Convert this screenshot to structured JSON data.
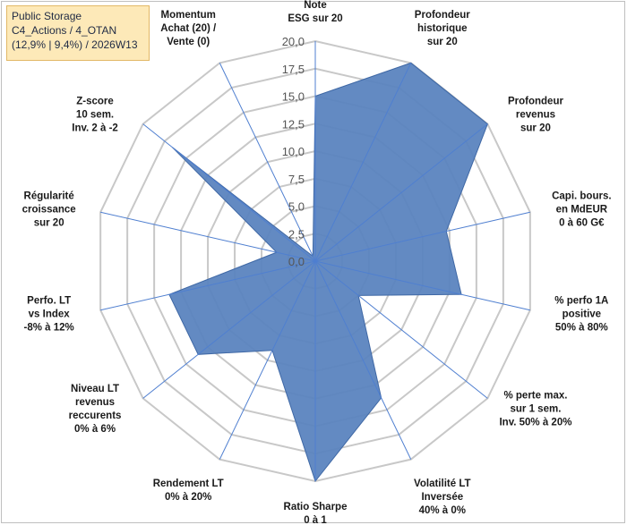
{
  "header": {
    "line1": "Public Storage",
    "line2": "C4_Actions / 4_OTAN",
    "line3": "(12,9% | 9,4%) / 2026W13"
  },
  "colors": {
    "fill": "#5b84bf",
    "stroke": "#3f68a5",
    "grid": "#c8c8c8",
    "axis": "#4f7fd0"
  },
  "chart_data": {
    "type": "radar",
    "rmin": 0,
    "rmax": 20,
    "ticks": [
      "0,0",
      "2,5",
      "5,0",
      "7,5",
      "10,0",
      "12,5",
      "15,0",
      "17,5",
      "20,0"
    ],
    "categories": [
      [
        "Note",
        "ESG sur 20"
      ],
      [
        "Profondeur",
        "historique",
        "sur 20"
      ],
      [
        "Profondeur",
        "revenus",
        "sur 20"
      ],
      [
        "Capi. bours.",
        "en MdEUR",
        "0 à 60 G€"
      ],
      [
        "% perfo 1A",
        "positive",
        "50% à 80%"
      ],
      [
        "% perte max.",
        "sur 1 sem.",
        "Inv. 50% à 20%"
      ],
      [
        "Volatilité LT",
        "Inversée",
        "40% à 0%"
      ],
      [
        "Ratio Sharpe",
        "0 à 1"
      ],
      [
        "Rendement LT",
        "0% à 20%"
      ],
      [
        "Niveau LT",
        "revenus",
        "reccurents",
        "0% à 6%"
      ],
      [
        "Perfo. LT",
        "vs Index",
        "-8% à 12%"
      ],
      [
        "Régularité",
        "croissance",
        "sur 20"
      ],
      [
        "Z-score",
        "10 sem.",
        "Inv. 2 à -2"
      ],
      [
        "Momentum",
        "Achat (20) /",
        "Vente (0)"
      ]
    ],
    "series": [
      {
        "name": "Public Storage",
        "values": [
          15.0,
          20.0,
          20.0,
          12.2,
          13.6,
          5.0,
          13.8,
          20.0,
          9.0,
          13.6,
          13.6,
          3.6,
          16.6,
          0.5
        ]
      }
    ]
  }
}
